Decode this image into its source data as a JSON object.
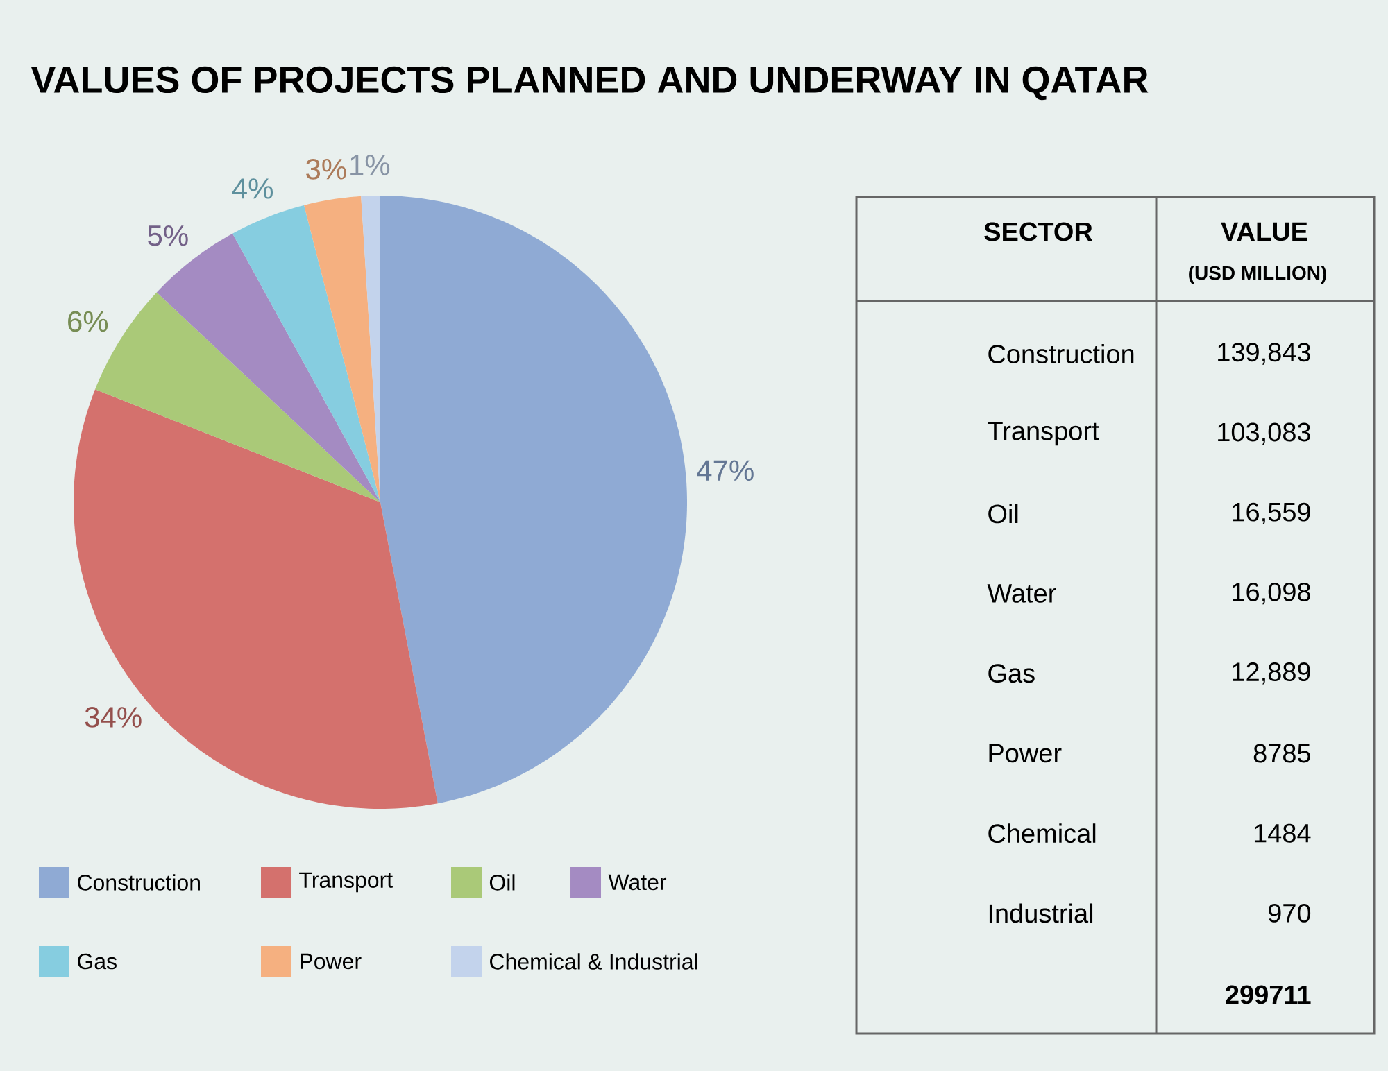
{
  "chart_data": [
    {
      "type": "pie",
      "title": "VALUES OF PROJECTS PLANNED AND UNDERWAY IN QATAR",
      "categories": [
        "Construction",
        "Transport",
        "Oil",
        "Water",
        "Gas",
        "Power",
        "Chemical & Industrial"
      ],
      "values": [
        47,
        34,
        6,
        5,
        4,
        3,
        1
      ],
      "value_labels": [
        "47%",
        "34%",
        "6%",
        "5%",
        "4%",
        "3%",
        "1%"
      ],
      "colors": [
        "#8faad4",
        "#d4716d",
        "#aac978",
        "#a48bc2",
        "#86cde0",
        "#f5b080",
        "#c3d3ec"
      ],
      "legend": "bottom"
    },
    {
      "type": "other",
      "annotations": [
        "SECTOR",
        "VALUE",
        "(USD MILLION)"
      ],
      "categories": [
        "Construction",
        "Transport",
        "Oil",
        "Water",
        "Gas",
        "Power",
        "Chemical",
        "Industrial"
      ],
      "value_labels": [
        "139,843",
        "103,083",
        "16,559",
        "16,098",
        "12,889",
        "8785",
        "1484",
        "970"
      ],
      "totals": [
        "299711"
      ]
    }
  ]
}
